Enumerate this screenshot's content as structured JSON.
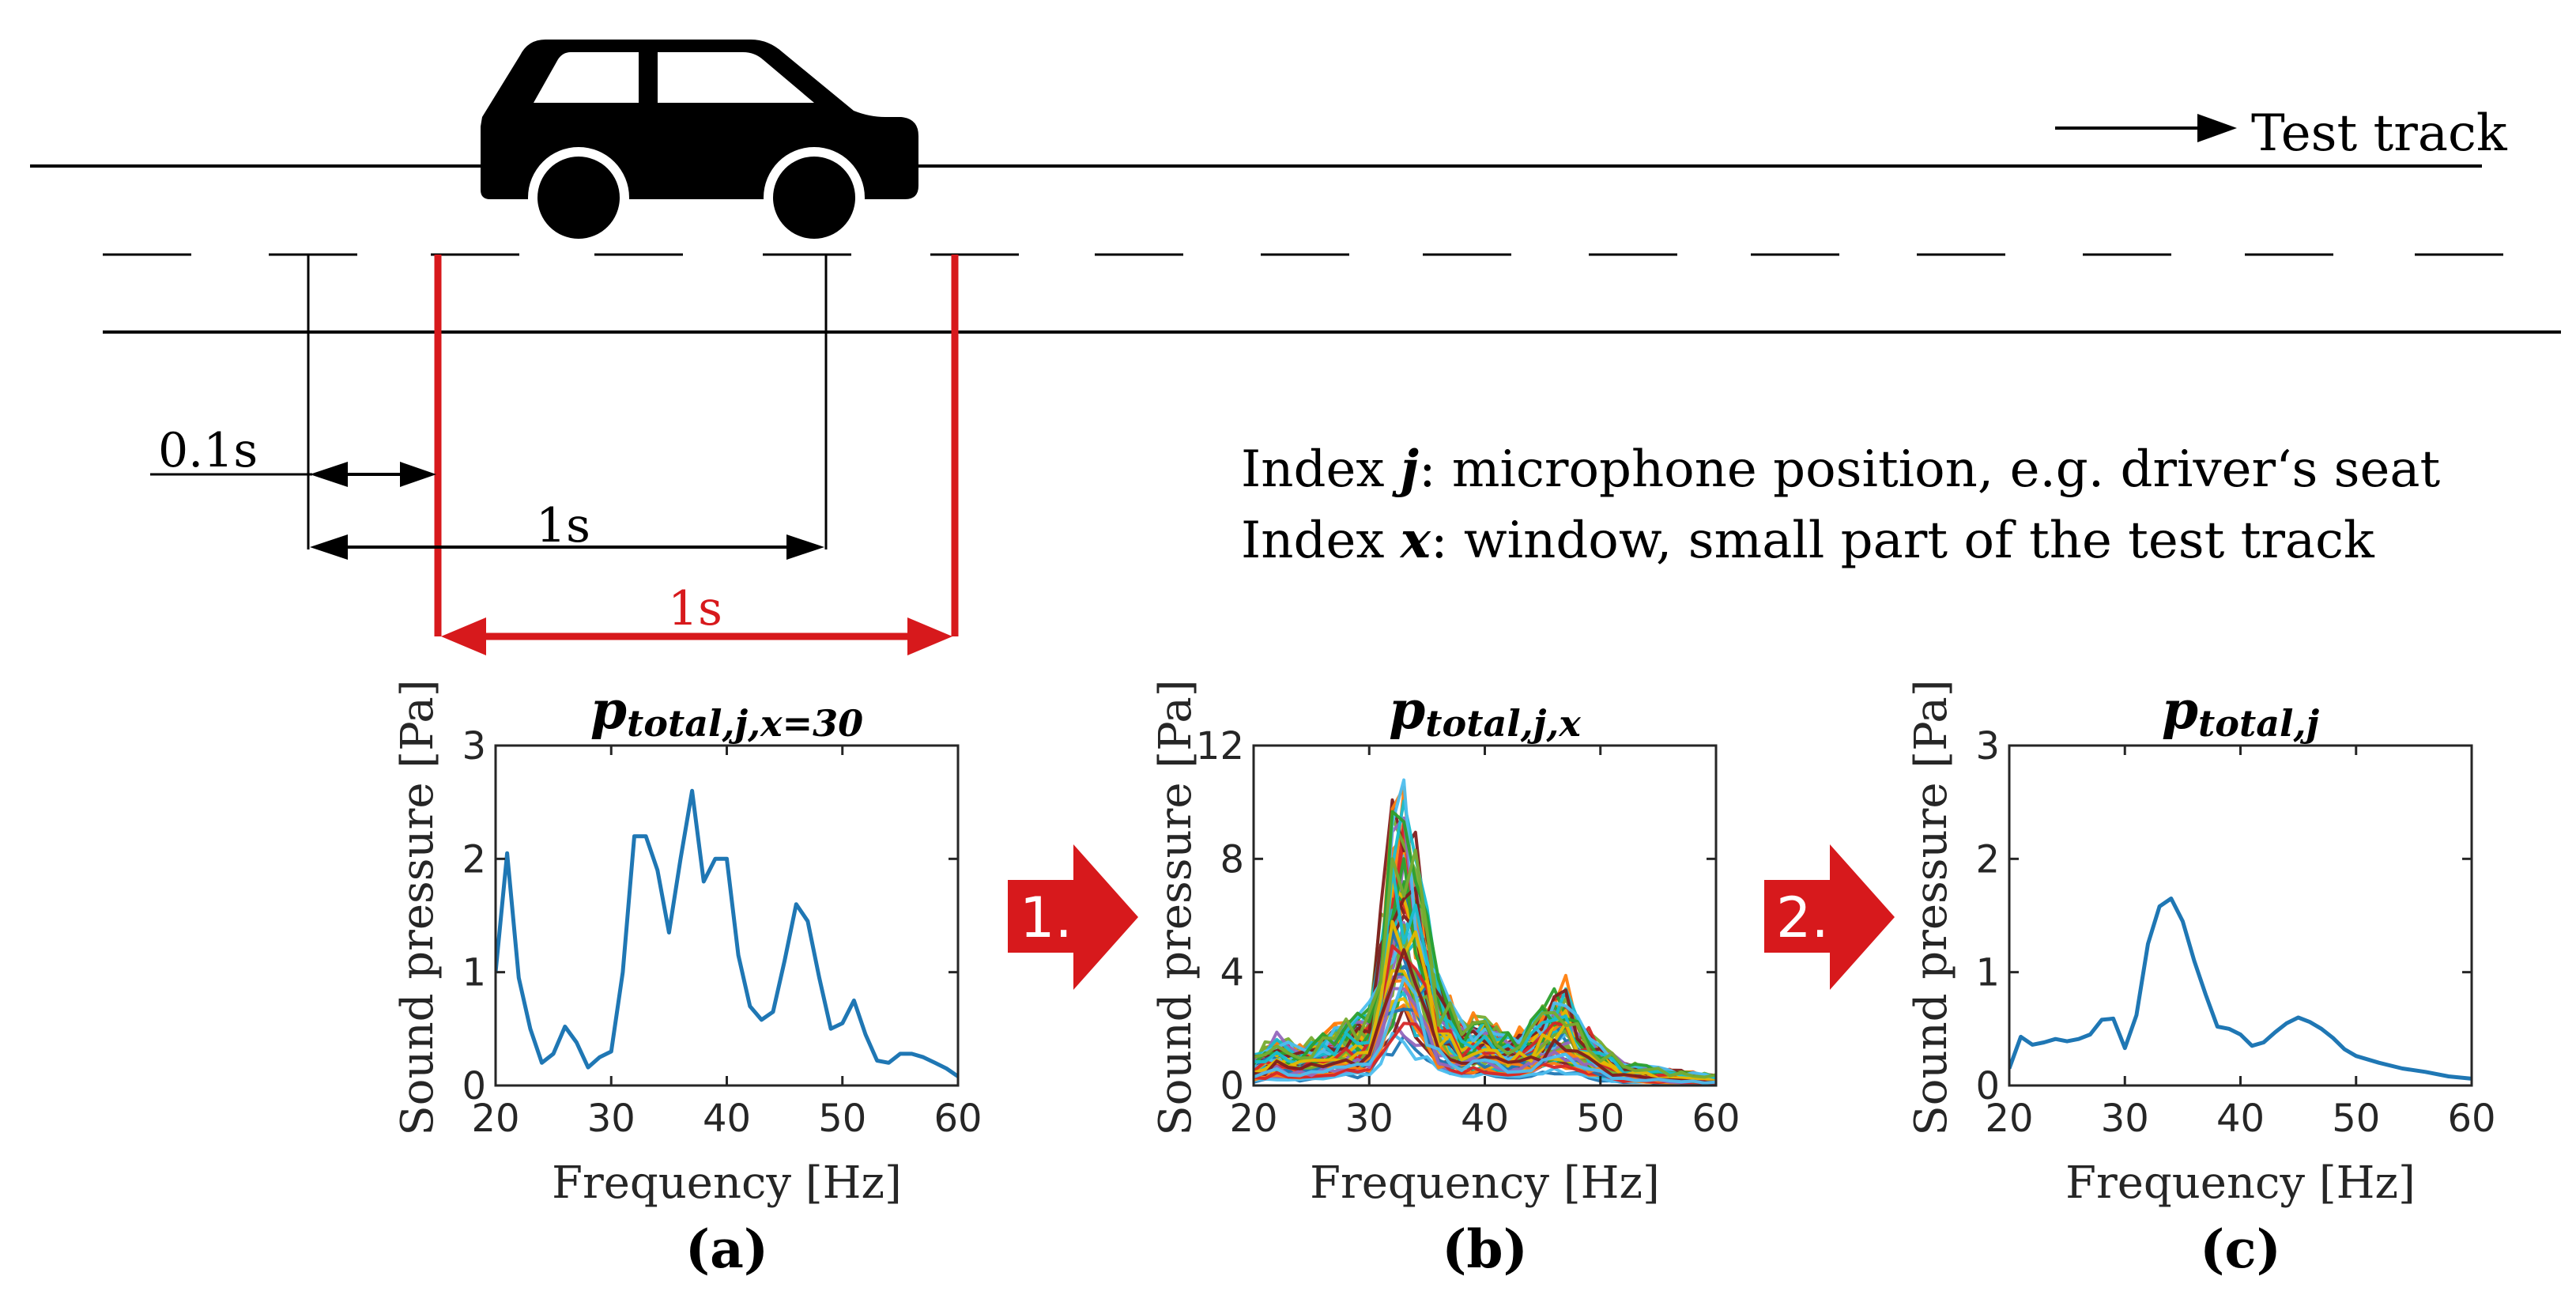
{
  "scene": {
    "track_label": "Test track",
    "offset_label": "0.1s",
    "window_label": "1s",
    "window_label_red": "1s",
    "index_j_prefix": "Index ",
    "index_j_var": "j",
    "index_j_suffix": ": microphone position, e.g. driver‘s seat",
    "index_x_prefix": "Index ",
    "index_x_var": "x",
    "index_x_suffix": ": window, small part of the test track",
    "colors": {
      "line": "#000000",
      "accent": "#d7191c",
      "series": "#1f77b4"
    }
  },
  "steps": [
    {
      "label": "1."
    },
    {
      "label": "2."
    }
  ],
  "chart_data": [
    {
      "type": "line",
      "panel_label": "(a)",
      "title_main": "p",
      "title_sub": "total,j,x=30",
      "xlabel": "Frequency [Hz]",
      "ylabel": "Sound pressure [Pa]",
      "xlim": [
        20,
        60
      ],
      "ylim": [
        0,
        3
      ],
      "xticks": [
        20,
        30,
        40,
        50,
        60
      ],
      "yticks": [
        0,
        1,
        2,
        3
      ],
      "series": [
        {
          "name": "p_total,j,x=30",
          "color": "#1f77b4",
          "x": [
            20,
            21,
            22,
            23,
            24,
            25,
            26,
            27,
            28,
            29,
            30,
            31,
            32,
            33,
            34,
            35,
            36,
            37,
            38,
            39,
            40,
            41,
            42,
            43,
            44,
            45,
            46,
            47,
            48,
            49,
            50,
            51,
            52,
            53,
            54,
            55,
            56,
            57,
            58,
            59,
            60
          ],
          "y": [
            1.0,
            2.05,
            0.95,
            0.5,
            0.2,
            0.28,
            0.52,
            0.38,
            0.16,
            0.25,
            0.3,
            1.0,
            2.2,
            2.2,
            1.9,
            1.35,
            2.0,
            2.6,
            1.8,
            2.0,
            2.0,
            1.15,
            0.7,
            0.58,
            0.65,
            1.1,
            1.6,
            1.45,
            0.95,
            0.5,
            0.55,
            0.75,
            0.45,
            0.22,
            0.2,
            0.28,
            0.28,
            0.25,
            0.2,
            0.15,
            0.08
          ]
        }
      ]
    },
    {
      "type": "line",
      "panel_label": "(b)",
      "title_main": "p",
      "title_sub": "total,j,x",
      "xlabel": "Frequency [Hz]",
      "ylabel": "Sound pressure [Pa]",
      "xlim": [
        20,
        60
      ],
      "ylim": [
        0,
        12
      ],
      "xticks": [
        20,
        30,
        40,
        50,
        60
      ],
      "yticks": [
        0,
        4,
        8,
        12
      ],
      "envelope": {
        "x": [
          20,
          22,
          24,
          26,
          28,
          30,
          31,
          32,
          33,
          34,
          35,
          36,
          38,
          40,
          42,
          44,
          46,
          47,
          48,
          50,
          52,
          55,
          58,
          60
        ],
        "y": [
          1.2,
          2.0,
          1.5,
          2.0,
          2.5,
          3.0,
          6.5,
          10.5,
          11.5,
          9.5,
          7.0,
          4.0,
          2.5,
          2.8,
          2.0,
          2.5,
          3.8,
          4.0,
          2.8,
          1.6,
          0.9,
          0.7,
          0.5,
          0.4
        ]
      },
      "n_series": 60,
      "series_palette": [
        "#1f77b4",
        "#ff7f0e",
        "#2ca02c",
        "#d62728",
        "#9467bd",
        "#17becf",
        "#e6b800",
        "#7f1d1d",
        "#4dbeee",
        "#77ac30"
      ]
    },
    {
      "type": "line",
      "panel_label": "(c)",
      "title_main": "p",
      "title_sub": "total,j",
      "xlabel": "Frequency [Hz]",
      "ylabel": "Sound pressure [Pa]",
      "xlim": [
        20,
        60
      ],
      "ylim": [
        0,
        3
      ],
      "xticks": [
        20,
        30,
        40,
        50,
        60
      ],
      "yticks": [
        0,
        1,
        2,
        3
      ],
      "series": [
        {
          "name": "p_total,j",
          "color": "#1f77b4",
          "x": [
            20,
            21,
            22,
            23,
            24,
            25,
            26,
            27,
            28,
            29,
            30,
            31,
            32,
            33,
            34,
            35,
            36,
            37,
            38,
            39,
            40,
            41,
            42,
            43,
            44,
            45,
            46,
            47,
            48,
            49,
            50,
            52,
            54,
            56,
            58,
            60
          ],
          "y": [
            0.15,
            0.43,
            0.36,
            0.38,
            0.41,
            0.39,
            0.41,
            0.45,
            0.58,
            0.59,
            0.33,
            0.62,
            1.25,
            1.58,
            1.65,
            1.45,
            1.1,
            0.8,
            0.52,
            0.5,
            0.45,
            0.35,
            0.38,
            0.47,
            0.55,
            0.6,
            0.56,
            0.5,
            0.42,
            0.32,
            0.26,
            0.2,
            0.15,
            0.12,
            0.08,
            0.06
          ]
        }
      ]
    }
  ]
}
